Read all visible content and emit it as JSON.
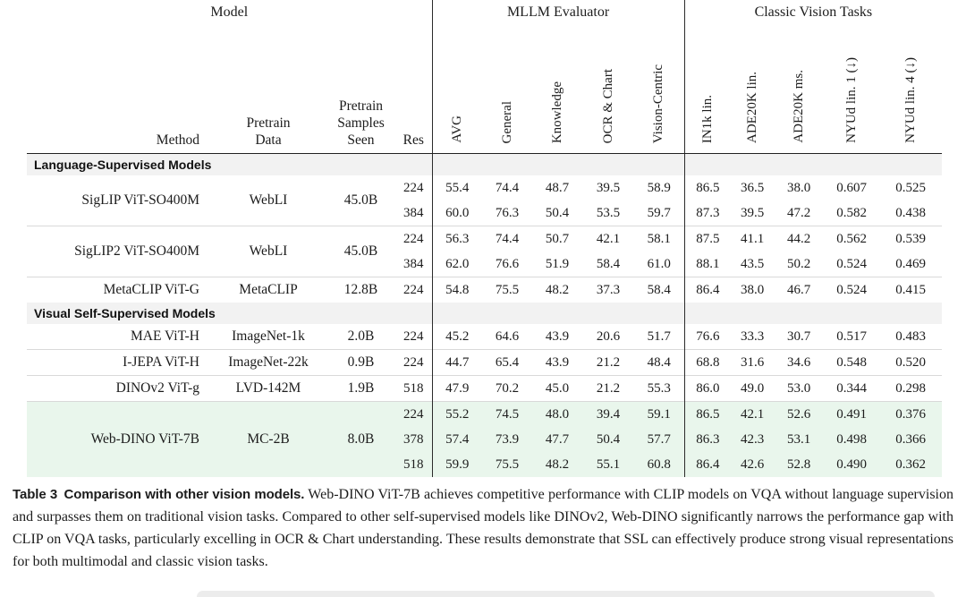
{
  "table": {
    "col_groups": [
      {
        "label": "Model",
        "span": 4
      },
      {
        "label": "MLLM Evaluator",
        "span": 5
      },
      {
        "label": "Classic Vision Tasks",
        "span": 5
      }
    ],
    "columns": {
      "method": "Method",
      "pretrain_data": "Pretrain\nData",
      "samples": "Pretrain\nSamples\nSeen",
      "res": "Res"
    },
    "rotated_columns": [
      "AVG",
      "General",
      "Knowledge",
      "OCR & Chart",
      "Vision-Centric",
      "IN1k lin.",
      "ADE20K lin.",
      "ADE20K ms.",
      "NYUd lin. 1 (↓)",
      "NYUd lin. 4 (↓)"
    ],
    "sections": [
      {
        "title": "Language-Supervised Models",
        "groups": [
          {
            "method": "SigLIP ViT-SO400M",
            "pretrain_data": "WebLI",
            "samples": "45.0B",
            "highlight": false,
            "rows": [
              {
                "res": "224",
                "values": [
                  "55.4",
                  "74.4",
                  "48.7",
                  "39.5",
                  "58.9",
                  "86.5",
                  "36.5",
                  "38.0",
                  "0.607",
                  "0.525"
                ]
              },
              {
                "res": "384",
                "values": [
                  "60.0",
                  "76.3",
                  "50.4",
                  "53.5",
                  "59.7",
                  "87.3",
                  "39.5",
                  "47.2",
                  "0.582",
                  "0.438"
                ]
              }
            ]
          },
          {
            "method": "SigLIP2 ViT-SO400M",
            "pretrain_data": "WebLI",
            "samples": "45.0B",
            "highlight": false,
            "rows": [
              {
                "res": "224",
                "values": [
                  "56.3",
                  "74.4",
                  "50.7",
                  "42.1",
                  "58.1",
                  "87.5",
                  "41.1",
                  "44.2",
                  "0.562",
                  "0.539"
                ]
              },
              {
                "res": "384",
                "values": [
                  "62.0",
                  "76.6",
                  "51.9",
                  "58.4",
                  "61.0",
                  "88.1",
                  "43.5",
                  "50.2",
                  "0.524",
                  "0.469"
                ]
              }
            ]
          },
          {
            "method": "MetaCLIP ViT-G",
            "pretrain_data": "MetaCLIP",
            "samples": "12.8B",
            "highlight": false,
            "rows": [
              {
                "res": "224",
                "values": [
                  "54.8",
                  "75.5",
                  "48.2",
                  "37.3",
                  "58.4",
                  "86.4",
                  "38.0",
                  "46.7",
                  "0.524",
                  "0.415"
                ]
              }
            ]
          }
        ]
      },
      {
        "title": "Visual Self-Supervised Models",
        "groups": [
          {
            "method": "MAE ViT-H",
            "pretrain_data": "ImageNet-1k",
            "samples": "2.0B",
            "highlight": false,
            "rows": [
              {
                "res": "224",
                "values": [
                  "45.2",
                  "64.6",
                  "43.9",
                  "20.6",
                  "51.7",
                  "76.6",
                  "33.3",
                  "30.7",
                  "0.517",
                  "0.483"
                ]
              }
            ]
          },
          {
            "method": "I-JEPA ViT-H",
            "pretrain_data": "ImageNet-22k",
            "samples": "0.9B",
            "highlight": false,
            "rows": [
              {
                "res": "224",
                "values": [
                  "44.7",
                  "65.4",
                  "43.9",
                  "21.2",
                  "48.4",
                  "68.8",
                  "31.6",
                  "34.6",
                  "0.548",
                  "0.520"
                ]
              }
            ]
          },
          {
            "method": "DINOv2 ViT-g",
            "pretrain_data": "LVD-142M",
            "samples": "1.9B",
            "highlight": false,
            "rows": [
              {
                "res": "518",
                "values": [
                  "47.9",
                  "70.2",
                  "45.0",
                  "21.2",
                  "55.3",
                  "86.0",
                  "49.0",
                  "53.0",
                  "0.344",
                  "0.298"
                ]
              }
            ]
          },
          {
            "method": "Web-DINO ViT-7B",
            "pretrain_data": "MC-2B",
            "samples": "8.0B",
            "highlight": true,
            "rows": [
              {
                "res": "224",
                "values": [
                  "55.2",
                  "74.5",
                  "48.0",
                  "39.4",
                  "59.1",
                  "86.5",
                  "42.1",
                  "52.6",
                  "0.491",
                  "0.376"
                ]
              },
              {
                "res": "378",
                "values": [
                  "57.4",
                  "73.9",
                  "47.7",
                  "50.4",
                  "57.7",
                  "86.3",
                  "42.3",
                  "53.1",
                  "0.498",
                  "0.366"
                ]
              },
              {
                "res": "518",
                "values": [
                  "59.9",
                  "75.5",
                  "48.2",
                  "55.1",
                  "60.8",
                  "86.4",
                  "42.6",
                  "52.8",
                  "0.490",
                  "0.362"
                ]
              }
            ]
          }
        ]
      }
    ]
  },
  "caption": {
    "lead": "Table 3 Comparison with other vision models.",
    "body": " Web-DINO ViT-7B achieves competitive performance with CLIP models on VQA without language supervision and surpasses them on traditional vision tasks. Compared to other self-supervised models like DINOv2, Web-DINO significantly narrows the performance gap with CLIP on VQA tasks, particularly excelling in OCR & Chart understanding. These results demonstrate that SSL can effectively produce strong visual representations for both multimodal and classic vision tasks."
  },
  "colors": {
    "highlight_green": "#e9f6ec",
    "section_band_gray": "#f2f2f2",
    "rule_black": "#222222",
    "separator_gray": "#d9d9d9"
  }
}
